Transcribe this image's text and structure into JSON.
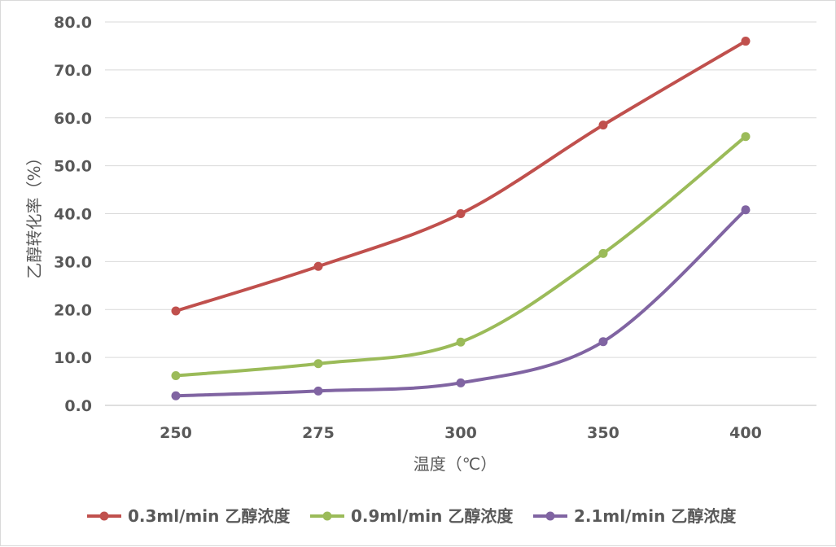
{
  "chart_data": {
    "type": "line",
    "title": "",
    "xlabel": "温度（℃）",
    "ylabel": "乙醇转化率（%）",
    "categories": [
      "250",
      "275",
      "300",
      "350",
      "400"
    ],
    "ylim": [
      0,
      80
    ],
    "yticks": [
      "0.0",
      "10.0",
      "20.0",
      "30.0",
      "40.0",
      "50.0",
      "60.0",
      "70.0",
      "80.0"
    ],
    "ytick_values": [
      0,
      10,
      20,
      30,
      40,
      50,
      60,
      70,
      80
    ],
    "grid": true,
    "smooth": true,
    "legend_position": "bottom",
    "series": [
      {
        "name": "0.3ml/min 乙醇浓度",
        "color": "#c0504d",
        "values": [
          19.7,
          29.0,
          40.0,
          58.5,
          76.0
        ]
      },
      {
        "name": "0.9ml/min 乙醇浓度",
        "color": "#9bbb59",
        "values": [
          6.2,
          8.7,
          13.2,
          31.7,
          56.1
        ]
      },
      {
        "name": "2.1ml/min 乙醇浓度",
        "color": "#8064a2",
        "values": [
          2.0,
          3.0,
          4.7,
          13.3,
          40.8
        ]
      }
    ]
  }
}
